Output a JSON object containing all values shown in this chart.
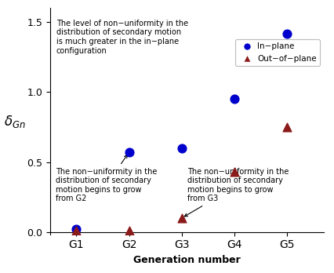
{
  "generations": [
    "G1",
    "G2",
    "G3",
    "G4",
    "G5"
  ],
  "x_positions": [
    1,
    2,
    3,
    4,
    5
  ],
  "inplane_values": [
    0.02,
    0.57,
    0.6,
    0.95,
    1.42
  ],
  "outofplane_values": [
    0.01,
    0.01,
    0.1,
    0.43,
    0.75
  ],
  "inplane_color": "#0000CC",
  "outofplane_color": "#8B1A1A",
  "ylim": [
    -0.02,
    1.6
  ],
  "yticks": [
    0,
    0.5,
    1,
    1.5
  ],
  "annotation1_text": "The level of non−uniformity in the\ndistribution of secondary motion\nis much greater in the in−plane\nconfiguration",
  "annotation2_text": "The non−uniformity in the\ndistribution of secondary\nmotion begins to grow\nfrom G2",
  "annotation3_text": "The non−uniformity in the\ndistribution of secondary\nmotion begins to grow\nfrom G3",
  "xlabel": "Generation number",
  "ylabel": "$\\delta_{Gn}$",
  "legend_inplane": "In−plane",
  "legend_outofplane": "Out−of−plane",
  "marker_size": 60
}
